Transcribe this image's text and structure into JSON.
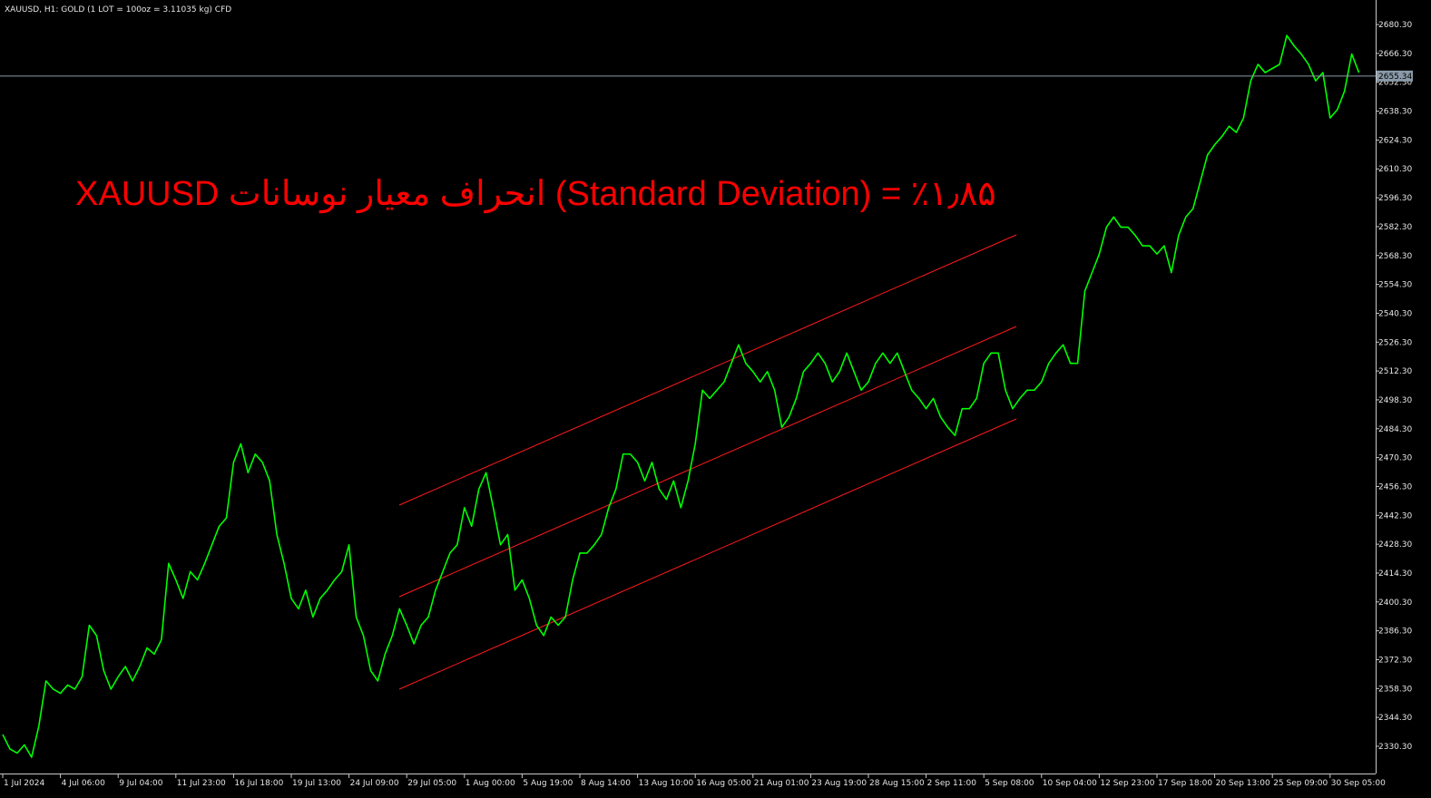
{
  "chart_data": {
    "type": "line",
    "title": "XAUUSD, H1:  GOLD (1 LOT = 100oz = 3.11035 kg) CFD",
    "annotation": "XAUUSD انحراف معیار نوسانات (Standard Deviation) = ٪۱٫۸۵",
    "color": "#00ff00",
    "current_price": 2655.34,
    "categories": [
      "1 Jul 2024",
      null,
      null,
      null,
      null,
      null,
      null,
      null,
      "4 Jul 06:00",
      null,
      null,
      null,
      null,
      null,
      null,
      null,
      "9 Jul 04:00",
      null,
      null,
      null,
      null,
      null,
      null,
      null,
      "11 Jul 23:00",
      null,
      null,
      null,
      null,
      null,
      null,
      null,
      "16 Jul 18:00",
      null,
      null,
      null,
      null,
      null,
      null,
      null,
      "19 Jul 13:00",
      null,
      null,
      null,
      null,
      null,
      null,
      null,
      "24 Jul 09:00",
      null,
      null,
      null,
      null,
      null,
      null,
      null,
      "29 Jul 05:00",
      null,
      null,
      null,
      null,
      null,
      null,
      null,
      "1 Aug 00:00",
      null,
      null,
      null,
      null,
      null,
      null,
      null,
      "5 Aug 19:00",
      null,
      null,
      null,
      null,
      null,
      null,
      null,
      "8 Aug 14:00",
      null,
      null,
      null,
      null,
      null,
      null,
      null,
      "13 Aug 10:00",
      null,
      null,
      null,
      null,
      null,
      null,
      null,
      "16 Aug 05:00",
      null,
      null,
      null,
      null,
      null,
      null,
      null,
      "21 Aug 01:00",
      null,
      null,
      null,
      null,
      null,
      null,
      null,
      "23 Aug 19:00",
      null,
      null,
      null,
      null,
      null,
      null,
      null,
      "28 Aug 15:00",
      null,
      null,
      null,
      null,
      null,
      null,
      null,
      "2 Sep 11:00",
      null,
      null,
      null,
      null,
      null,
      null,
      null,
      "5 Sep 08:00",
      null,
      null,
      null,
      null,
      null,
      null,
      null,
      "10 Sep 04:00",
      null,
      null,
      null,
      null,
      null,
      null,
      null,
      "12 Sep 23:00",
      null,
      null,
      null,
      null,
      null,
      null,
      null,
      "17 Sep 18:00",
      null,
      null,
      null,
      null,
      null,
      null,
      null,
      "20 Sep 13:00",
      null,
      null,
      null,
      null,
      null,
      null,
      null,
      "25 Sep 09:00",
      null,
      null,
      null,
      null,
      null,
      null,
      null,
      "30 Sep 05:00",
      null,
      null,
      null,
      null
    ],
    "values": [
      2336,
      2329,
      2327,
      2331,
      2325,
      2340,
      2362,
      2358,
      2356,
      2360,
      2358,
      2364,
      2389,
      2384,
      2367,
      2358,
      2364,
      2369,
      2362,
      2369,
      2378,
      2375,
      2382,
      2419,
      2411,
      2402,
      2415,
      2411,
      2419,
      2428,
      2437,
      2441,
      2468,
      2477,
      2463,
      2472,
      2468,
      2459,
      2433,
      2419,
      2402,
      2397,
      2406,
      2393,
      2402,
      2406,
      2411,
      2415,
      2428,
      2393,
      2384,
      2367,
      2362,
      2375,
      2384,
      2397,
      2389,
      2380,
      2389,
      2393,
      2406,
      2415,
      2424,
      2428,
      2446,
      2437,
      2455,
      2463,
      2446,
      2428,
      2433,
      2406,
      2411,
      2402,
      2389,
      2384,
      2393,
      2389,
      2393,
      2411,
      2424,
      2424,
      2428,
      2433,
      2446,
      2455,
      2472,
      2472,
      2468,
      2459,
      2468,
      2455,
      2450,
      2459,
      2446,
      2459,
      2477,
      2503,
      2499,
      2503,
      2507,
      2516,
      2525,
      2516,
      2512,
      2507,
      2512,
      2503,
      2485,
      2490,
      2499,
      2512,
      2516,
      2521,
      2516,
      2507,
      2512,
      2521,
      2512,
      2503,
      2507,
      2516,
      2521,
      2516,
      2521,
      2512,
      2503,
      2499,
      2494,
      2499,
      2490,
      2485,
      2481,
      2494,
      2494,
      2499,
      2516,
      2521,
      2521,
      2503,
      2494,
      2499,
      2503,
      2503,
      2507,
      2516,
      2521,
      2525,
      2516,
      2516,
      2551,
      2560,
      2569,
      2582,
      2587,
      2582,
      2582,
      2578,
      2573,
      2573,
      2569,
      2573,
      2560,
      2578,
      2587,
      2591,
      2604,
      2617,
      2622,
      2626,
      2631,
      2628,
      2635,
      2653,
      2661,
      2657,
      2659,
      2661,
      2675,
      2670,
      2666,
      2661,
      2653,
      2657,
      2635,
      2639,
      2648,
      2666,
      2657
    ],
    "ylim": [
      2317.1,
      2692.2
    ],
    "yticks": [
      {
        "value": 2330.3,
        "label": "2330.30"
      },
      {
        "value": 2344.3,
        "label": "2344.30"
      },
      {
        "value": 2358.3,
        "label": "2358.30"
      },
      {
        "value": 2372.3,
        "label": "2372.30"
      },
      {
        "value": 2386.3,
        "label": "2386.30"
      },
      {
        "value": 2400.3,
        "label": "2400.30"
      },
      {
        "value": 2414.3,
        "label": "2414.30"
      },
      {
        "value": 2428.3,
        "label": "2428.30"
      },
      {
        "value": 2442.3,
        "label": "2442.30"
      },
      {
        "value": 2456.3,
        "label": "2456.30"
      },
      {
        "value": 2470.3,
        "label": "2470.30"
      },
      {
        "value": 2484.3,
        "label": "2484.30"
      },
      {
        "value": 2498.3,
        "label": "2498.30"
      },
      {
        "value": 2512.3,
        "label": "2512.30"
      },
      {
        "value": 2526.3,
        "label": "2526.30"
      },
      {
        "value": 2540.3,
        "label": "2540.30"
      },
      {
        "value": 2554.3,
        "label": "2554.30"
      },
      {
        "value": 2568.3,
        "label": "2568.30"
      },
      {
        "value": 2582.3,
        "label": "2582.30"
      },
      {
        "value": 2596.3,
        "label": "2596.30"
      },
      {
        "value": 2610.3,
        "label": "2610.30"
      },
      {
        "value": 2624.3,
        "label": "2624.30"
      },
      {
        "value": 2638.3,
        "label": "2638.30"
      },
      {
        "value": 2652.3,
        "label": "2652.30"
      },
      {
        "value": 2666.3,
        "label": "2666.30"
      },
      {
        "value": 2680.3,
        "label": "2680.30"
      }
    ]
  }
}
